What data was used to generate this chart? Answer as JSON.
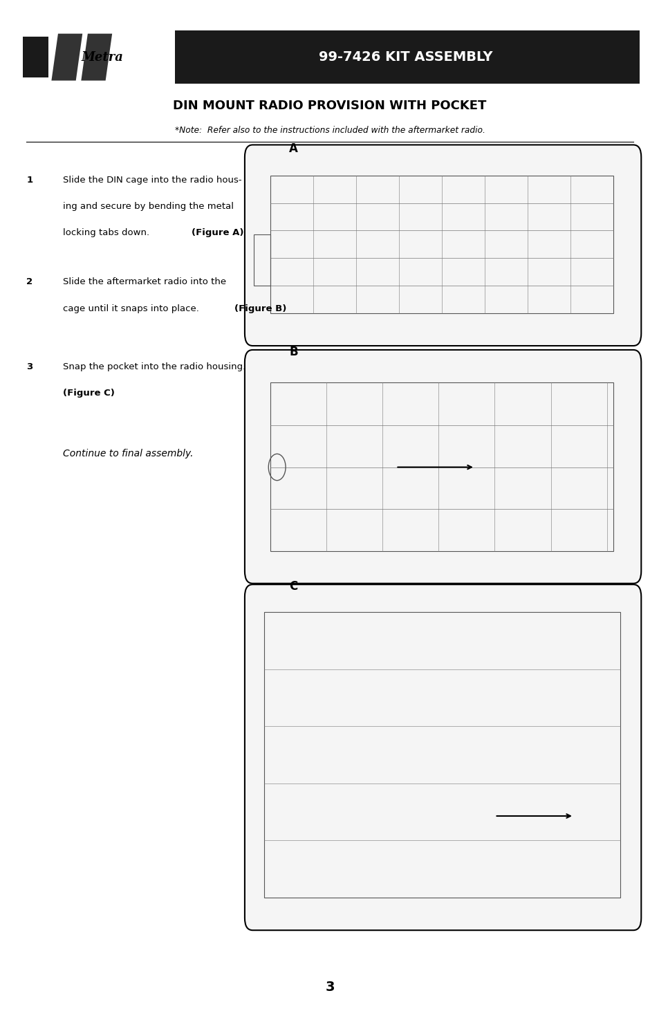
{
  "bg_color": "#ffffff",
  "header_bg": "#1a1a1a",
  "header_text": "99-7426 KIT ASSEMBLY",
  "header_text_color": "#ffffff",
  "page_title": "DIN MOUNT RADIO PROVISION WITH POCKET",
  "note_text": "*Note:  Refer also to the instructions included with the aftermarket radio.",
  "step1_num": "1",
  "step1_line1": "Slide the DIN cage into the radio hous-",
  "step1_line2": "ing and secure by bending the metal",
  "step1_line3": "locking tabs down. ",
  "step1_bold": "(Figure A)",
  "step2_num": "2",
  "step2_line1": "Slide the aftermarket radio into the",
  "step2_line2": "cage until it snaps into place. ",
  "step2_bold": "(Figure B)",
  "step3_num": "3",
  "step3_line1": "Snap the pocket into the radio housing.",
  "step3_line2": "",
  "step3_bold": "(Figure C)",
  "continue_text": "Continue to final assembly.",
  "fig_labels": [
    "A",
    "B",
    "C"
  ],
  "page_number": "3"
}
